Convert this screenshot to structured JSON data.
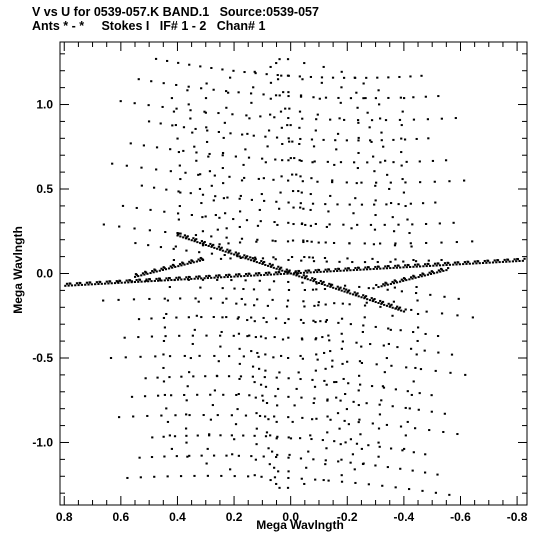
{
  "titles": {
    "line1": "V vs U for 0539-057.K BAND.1   Source:0539-057",
    "line2": "Ants * - *     Stokes I   IF# 1 - 2   Chan# 1"
  },
  "colors": {
    "background": "#ffffff",
    "ink": "#000000"
  },
  "chart_data": {
    "type": "scatter",
    "xlabel": "Mega Wavlngth",
    "ylabel": "Mega Wavlngth",
    "xlim": [
      0.815,
      -0.835
    ],
    "ylim": [
      -1.37,
      1.37
    ],
    "x_reversed": true,
    "grid": false,
    "x_ticks": [
      {
        "value": 0.8,
        "label": "0.8"
      },
      {
        "value": 0.6,
        "label": "0.6"
      },
      {
        "value": 0.4,
        "label": "0.4"
      },
      {
        "value": 0.2,
        "label": "0.2"
      },
      {
        "value": 0.0,
        "label": "0.0"
      },
      {
        "value": -0.2,
        "label": "-0.2"
      },
      {
        "value": -0.4,
        "label": "-0.4"
      },
      {
        "value": -0.6,
        "label": "-0.6"
      },
      {
        "value": -0.8,
        "label": "-0.8"
      }
    ],
    "y_ticks": [
      {
        "value": 1.0,
        "label": "1.0"
      },
      {
        "value": 0.5,
        "label": "0.5"
      },
      {
        "value": 0.0,
        "label": "0.0"
      },
      {
        "value": -0.5,
        "label": "-0.5"
      },
      {
        "value": -1.0,
        "label": "-1.0"
      }
    ],
    "tracks": [
      {
        "from": [
          0.0,
          0.0
        ],
        "to": [
          0.82,
          -0.075
        ],
        "points": 70
      },
      {
        "from": [
          0.0,
          0.0
        ],
        "to": [
          0.4,
          0.225
        ],
        "points": 40
      },
      {
        "from": [
          0.0,
          0.0
        ],
        "to": [
          -0.82,
          0.075
        ],
        "points": 70
      },
      {
        "from": [
          0.0,
          0.0
        ],
        "to": [
          -0.4,
          -0.225
        ],
        "points": 40
      },
      {
        "from": [
          0.31,
          0.08
        ],
        "to": [
          0.55,
          -0.02
        ],
        "points": 22
      },
      {
        "from": [
          -0.31,
          -0.08
        ],
        "to": [
          -0.55,
          0.02
        ],
        "points": 22
      }
    ],
    "spiral_arcs": {
      "y_centers": [
        1.22,
        1.1,
        0.97,
        0.85,
        0.72,
        0.6,
        0.47,
        0.35,
        0.24,
        0.13,
        -0.1,
        -0.21,
        -0.32,
        -0.43,
        -0.55,
        -0.67,
        -0.78,
        -0.9,
        -1.02,
        -1.14,
        -1.26
      ],
      "x_extent": [
        0.68,
        -0.66
      ],
      "sag": 0.1,
      "points_per_arc": 24
    },
    "columns": {
      "x_positions": [
        0.42,
        0.34,
        0.27,
        0.21,
        0.15,
        0.1,
        0.06,
        0.02,
        -0.02,
        -0.06,
        -0.1,
        -0.15,
        -0.21,
        -0.27,
        -0.34,
        -0.42
      ],
      "y_range": [
        -1.28,
        1.28
      ],
      "points_per_column": 26
    }
  }
}
